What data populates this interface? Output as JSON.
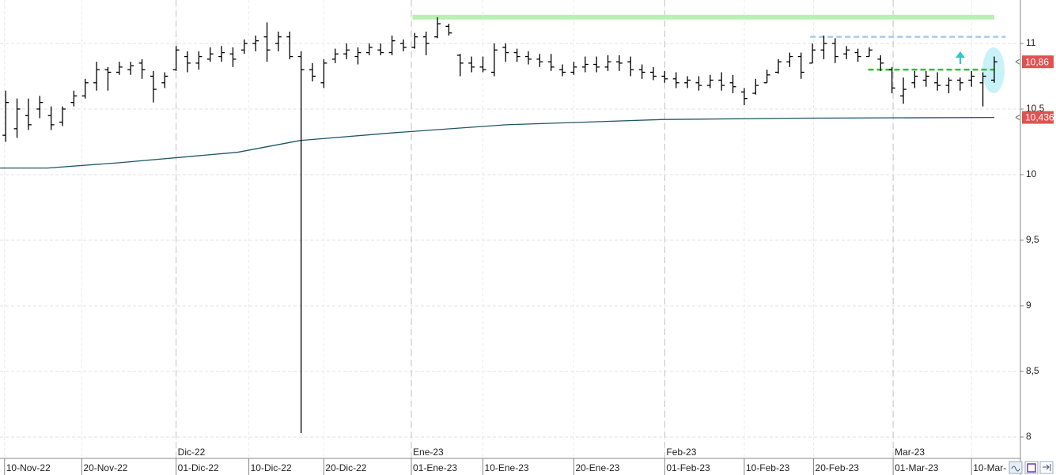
{
  "chart_data": {
    "type": "ohlc",
    "series": [
      {
        "color": "#000000",
        "open": [
          10.3,
          10.35,
          10.45,
          10.5,
          10.45,
          10.4,
          10.55,
          10.6,
          10.7,
          10.8,
          10.78,
          10.8,
          10.85,
          10.75,
          10.7,
          10.8,
          10.9,
          10.85,
          10.88,
          10.9,
          10.92,
          10.95,
          11.0,
          11.05,
          11.0,
          11.05,
          10.9,
          10.8,
          10.7,
          10.88,
          10.92,
          10.9,
          10.93,
          10.95,
          10.93,
          11.0,
          10.97,
          11.05,
          11.05,
          11.13,
          10.91,
          10.85,
          10.82,
          10.78,
          10.97,
          10.93,
          10.9,
          10.88,
          10.86,
          10.8,
          10.78,
          10.82,
          10.84,
          10.82,
          10.86,
          10.86,
          10.8,
          10.78,
          10.75,
          10.73,
          10.7,
          10.7,
          10.68,
          10.72,
          10.7,
          10.63,
          10.62,
          10.7,
          10.78,
          10.86,
          10.9,
          10.85,
          10.95,
          11.0,
          10.92,
          10.93,
          10.9,
          10.88,
          10.8,
          10.6,
          10.7,
          10.72,
          10.7,
          10.68,
          10.72,
          10.72,
          10.7,
          10.72
        ],
        "high": [
          10.64,
          10.58,
          10.58,
          10.6,
          10.52,
          10.52,
          10.64,
          10.73,
          10.86,
          10.82,
          10.86,
          10.86,
          10.88,
          10.79,
          10.78,
          10.98,
          10.94,
          10.94,
          10.97,
          10.98,
          10.97,
          11.03,
          11.06,
          11.16,
          11.09,
          11.09,
          10.94,
          10.85,
          10.88,
          10.96,
          11.0,
          10.97,
          11.0,
          11.0,
          11.06,
          11.03,
          11.08,
          11.09,
          11.2,
          11.15,
          10.92,
          10.9,
          10.9,
          11.0,
          11.0,
          10.96,
          10.94,
          10.92,
          10.92,
          10.84,
          10.86,
          10.9,
          10.9,
          10.91,
          10.91,
          10.9,
          10.84,
          10.82,
          10.79,
          10.78,
          10.75,
          10.75,
          10.76,
          10.78,
          10.76,
          10.66,
          10.73,
          10.8,
          10.88,
          10.93,
          10.93,
          11.0,
          11.06,
          11.04,
          10.98,
          10.96,
          10.97,
          10.91,
          10.82,
          10.74,
          10.79,
          10.79,
          10.78,
          10.74,
          10.74,
          10.79,
          10.78,
          10.9
        ],
        "low": [
          10.25,
          10.28,
          10.34,
          10.43,
          10.34,
          10.37,
          10.52,
          10.58,
          10.64,
          10.64,
          10.76,
          10.76,
          10.73,
          10.55,
          10.66,
          10.79,
          10.78,
          10.8,
          10.86,
          10.86,
          10.82,
          10.92,
          10.94,
          10.86,
          10.94,
          10.88,
          8.03,
          10.71,
          10.66,
          10.85,
          10.88,
          10.84,
          10.91,
          10.91,
          10.91,
          10.94,
          10.96,
          10.91,
          11.04,
          11.06,
          10.75,
          10.78,
          10.78,
          10.75,
          10.86,
          10.86,
          10.84,
          10.82,
          10.79,
          10.75,
          10.76,
          10.78,
          10.78,
          10.79,
          10.79,
          10.75,
          10.73,
          10.72,
          10.7,
          10.66,
          10.66,
          10.64,
          10.66,
          10.64,
          10.62,
          10.53,
          10.61,
          10.7,
          10.77,
          10.82,
          10.73,
          10.85,
          10.88,
          10.85,
          10.88,
          10.86,
          10.9,
          10.79,
          10.62,
          10.54,
          10.66,
          10.67,
          10.64,
          10.62,
          10.64,
          10.67,
          10.52,
          10.7
        ],
        "close": [
          10.55,
          10.5,
          10.38,
          10.55,
          10.38,
          10.5,
          10.6,
          10.7,
          10.8,
          10.78,
          10.82,
          10.83,
          10.8,
          10.65,
          10.75,
          10.95,
          10.85,
          10.9,
          10.92,
          10.93,
          10.88,
          11.0,
          11.02,
          10.95,
          11.05,
          10.9,
          10.8,
          10.75,
          10.85,
          10.92,
          10.95,
          10.93,
          10.97,
          10.93,
          11.02,
          10.97,
          11.05,
          11.0,
          11.15,
          11.08,
          10.85,
          10.82,
          10.8,
          10.95,
          10.93,
          10.9,
          10.88,
          10.86,
          10.82,
          10.78,
          10.82,
          10.84,
          10.82,
          10.86,
          10.85,
          10.8,
          10.78,
          10.75,
          10.73,
          10.7,
          10.72,
          10.68,
          10.72,
          10.68,
          10.67,
          10.58,
          10.68,
          10.76,
          10.86,
          10.9,
          10.78,
          10.95,
          11.0,
          10.9,
          10.95,
          10.9,
          10.95,
          10.85,
          10.66,
          10.65,
          10.75,
          10.75,
          10.68,
          10.72,
          10.7,
          10.75,
          10.75,
          10.86
        ]
      }
    ],
    "moving_average": {
      "color": "#1f5566",
      "x": [
        -0.5,
        3.7,
        9.9,
        20.4,
        25.9,
        34.3,
        44.0,
        57.9,
        69.0,
        87
      ],
      "values": [
        10.05,
        10.05,
        10.09,
        10.17,
        10.26,
        10.32,
        10.38,
        10.42,
        10.43,
        10.436
      ]
    },
    "levels": [
      {
        "value": 11.2,
        "color": "#b8f0b0",
        "style": "solid",
        "start": 35.8,
        "end": 87
      },
      {
        "value": 11.05,
        "color": "#a9c9ea",
        "style": "dashed",
        "start": 70.8,
        "end": 88
      },
      {
        "value": 10.8,
        "color": "#22cc22",
        "style": "dashed",
        "start": 75.9,
        "end": 87
      }
    ],
    "price_labels": [
      {
        "value": 10.86,
        "label": "10,86"
      },
      {
        "value": 10.436,
        "label": "10,436"
      }
    ],
    "xlim": [
      -0.5,
      89.3
    ],
    "ylim": [
      7.837,
      11.331
    ],
    "yticks": [
      {
        "value": 8,
        "label": "8"
      },
      {
        "value": 8.5,
        "label": "8,5"
      },
      {
        "value": 9,
        "label": "9"
      },
      {
        "value": 9.5,
        "label": "9,5"
      },
      {
        "value": 10,
        "label": "10"
      },
      {
        "value": 10.5,
        "label": "10,5"
      },
      {
        "value": 11,
        "label": "11"
      }
    ],
    "xticks": [
      {
        "value": -0.1,
        "label": "10-Nov-22"
      },
      {
        "value": 6.7,
        "label": "20-Nov-22"
      },
      {
        "value": 15.0,
        "label": "01-Dic-22"
      },
      {
        "value": 21.4,
        "label": "10-Dic-22"
      },
      {
        "value": 28.0,
        "label": "20-Dic-22"
      },
      {
        "value": 35.7,
        "label": "01-Ene-23"
      },
      {
        "value": 42.0,
        "label": "10-Ene-23"
      },
      {
        "value": 50.0,
        "label": "20-Ene-23"
      },
      {
        "value": 58.0,
        "label": "01-Feb-23"
      },
      {
        "value": 65.0,
        "label": "10-Feb-23"
      },
      {
        "value": 71.1,
        "label": "20-Feb-23"
      },
      {
        "value": 78.1,
        "label": "01-Mar-23"
      },
      {
        "value": 85.0,
        "label": "10-Mar-"
      }
    ],
    "month_ticks": [
      {
        "value": 15.0,
        "label": "Dic-22"
      },
      {
        "value": 35.7,
        "label": "Ene-23"
      },
      {
        "value": 58.0,
        "label": "Feb-23"
      },
      {
        "value": 78.1,
        "label": "Mar-23"
      }
    ],
    "grid": true
  }
}
